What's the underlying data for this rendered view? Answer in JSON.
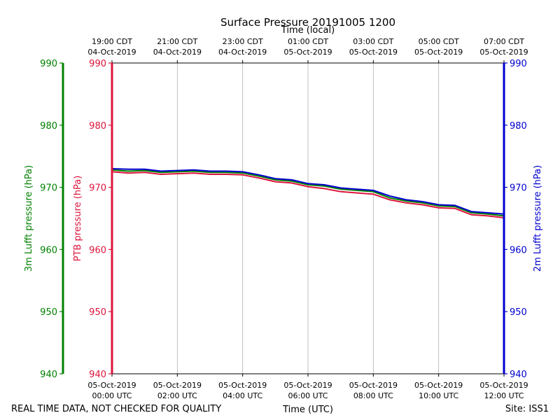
{
  "chart_data": {
    "type": "line",
    "title": "Surface Pressure 20191005 1200",
    "xlabel_bottom": "Time (UTC)",
    "xlabel_top": "Time (local)",
    "footer_left": "REAL TIME DATA, NOT CHECKED FOR QUALITY",
    "footer_right": "Site: ISS1",
    "xlim_hours": [
      0,
      12
    ],
    "bottom_ticks": [
      {
        "hour": 0,
        "date": "05-Oct-2019",
        "time": "00:00 UTC"
      },
      {
        "hour": 2,
        "date": "05-Oct-2019",
        "time": "02:00 UTC"
      },
      {
        "hour": 4,
        "date": "05-Oct-2019",
        "time": "04:00 UTC"
      },
      {
        "hour": 6,
        "date": "05-Oct-2019",
        "time": "06:00 UTC"
      },
      {
        "hour": 8,
        "date": "05-Oct-2019",
        "time": "08:00 UTC"
      },
      {
        "hour": 10,
        "date": "05-Oct-2019",
        "time": "10:00 UTC"
      },
      {
        "hour": 12,
        "date": "05-Oct-2019",
        "time": "12:00 UTC"
      }
    ],
    "top_ticks": [
      {
        "hour": 0,
        "time": "19:00 CDT",
        "date": "04-Oct-2019"
      },
      {
        "hour": 2,
        "time": "21:00 CDT",
        "date": "04-Oct-2019"
      },
      {
        "hour": 4,
        "time": "23:00 CDT",
        "date": "04-Oct-2019"
      },
      {
        "hour": 6,
        "time": "01:00 CDT",
        "date": "05-Oct-2019"
      },
      {
        "hour": 8,
        "time": "03:00 CDT",
        "date": "05-Oct-2019"
      },
      {
        "hour": 10,
        "time": "05:00 CDT",
        "date": "05-Oct-2019"
      },
      {
        "hour": 12,
        "time": "07:00 CDT",
        "date": "05-Oct-2019"
      }
    ],
    "axes": [
      {
        "id": "lufft3m",
        "label": "3m Lufft pressure (hPa)",
        "color": "#008000",
        "ylim": [
          940,
          990
        ],
        "ticks": [
          "940",
          "950",
          "960",
          "970",
          "980",
          "990"
        ]
      },
      {
        "id": "ptb",
        "label": "PTB pressure (hPa)",
        "color": "#dc143c",
        "ylim": [
          940,
          990
        ],
        "ticks": [
          "940",
          "950",
          "960",
          "970",
          "980",
          "990"
        ]
      },
      {
        "id": "lufft2m",
        "label": "2m Lufft pressure (hPa)",
        "color": "#0000cd",
        "ylim": [
          940,
          990
        ],
        "ticks": [
          "940",
          "950",
          "960",
          "970",
          "980",
          "990"
        ]
      }
    ],
    "series": [
      {
        "name": "3m Lufft pressure",
        "color": "#008000",
        "x": [
          0,
          0.5,
          1,
          1.5,
          2,
          2.5,
          3,
          3.5,
          4,
          4.5,
          5,
          5.5,
          6,
          6.5,
          7,
          7.5,
          8,
          8.5,
          9,
          9.5,
          10,
          10.5,
          11,
          11.5,
          12
        ],
        "y": [
          972.8,
          972.6,
          972.7,
          972.4,
          972.5,
          972.6,
          972.4,
          972.4,
          972.3,
          971.8,
          971.2,
          971.0,
          970.4,
          970.2,
          969.7,
          969.5,
          969.3,
          968.3,
          967.8,
          967.5,
          967.0,
          966.9,
          965.9,
          965.7,
          965.4
        ]
      },
      {
        "name": "PTB pressure",
        "color": "#dc143c",
        "x": [
          0,
          0.5,
          1,
          1.5,
          2,
          2.5,
          3,
          3.5,
          4,
          4.5,
          5,
          5.5,
          6,
          6.5,
          7,
          7.5,
          8,
          8.5,
          9,
          9.5,
          10,
          10.5,
          11,
          11.5,
          12
        ],
        "y": [
          972.5,
          972.3,
          972.4,
          972.1,
          972.2,
          972.3,
          972.1,
          972.1,
          972.0,
          971.5,
          970.9,
          970.7,
          970.1,
          969.8,
          969.3,
          969.1,
          968.9,
          968.0,
          967.5,
          967.2,
          966.7,
          966.6,
          965.6,
          965.4,
          965.1
        ]
      },
      {
        "name": "2m Lufft pressure",
        "color": "#0000cd",
        "x": [
          0,
          0.5,
          1,
          1.5,
          2,
          2.5,
          3,
          3.5,
          4,
          4.5,
          5,
          5.5,
          6,
          6.5,
          7,
          7.5,
          8,
          8.5,
          9,
          9.5,
          10,
          10.5,
          11,
          11.5,
          12
        ],
        "y": [
          973.0,
          972.9,
          972.9,
          972.6,
          972.7,
          972.8,
          972.6,
          972.6,
          972.5,
          972.0,
          971.4,
          971.2,
          970.6,
          970.4,
          969.9,
          969.7,
          969.5,
          968.6,
          968.0,
          967.7,
          967.2,
          967.1,
          966.1,
          965.9,
          965.7
        ]
      }
    ]
  }
}
